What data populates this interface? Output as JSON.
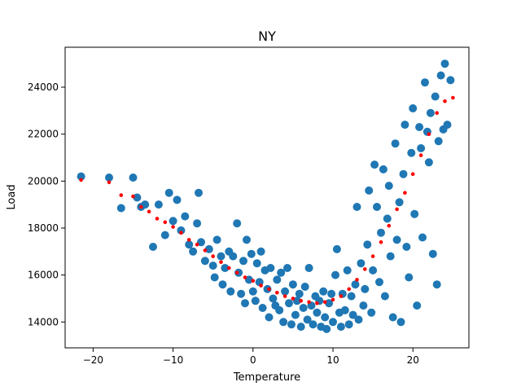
{
  "chart_data": {
    "type": "scatter",
    "title": "NY",
    "xlabel": "Temperature",
    "ylabel": "Load",
    "xlim": [
      -23.5,
      27
    ],
    "ylim": [
      12900,
      25700
    ],
    "xticks": [
      -20,
      -10,
      0,
      10,
      20
    ],
    "yticks": [
      14000,
      16000,
      18000,
      20000,
      22000,
      24000
    ],
    "grid": false,
    "colors": {
      "observed": "#1f77b4",
      "fitted": "#ff0000"
    },
    "series": [
      {
        "marker": "large-circle",
        "color": "#1f77b4",
        "points": [
          [
            -21.5,
            20200
          ],
          [
            -18,
            20150
          ],
          [
            -16.5,
            18850
          ],
          [
            -15,
            20150
          ],
          [
            -14,
            18900
          ],
          [
            -14.5,
            19300
          ],
          [
            -13.5,
            19000
          ],
          [
            -12.5,
            17200
          ],
          [
            -11.8,
            19000
          ],
          [
            -11,
            17700
          ],
          [
            -10.5,
            19500
          ],
          [
            -10,
            18300
          ],
          [
            -9.5,
            19200
          ],
          [
            -9,
            17900
          ],
          [
            -8.5,
            18500
          ],
          [
            -8,
            17300
          ],
          [
            -7.5,
            17000
          ],
          [
            -7,
            18200
          ],
          [
            -6.8,
            19500
          ],
          [
            -6.5,
            17400
          ],
          [
            -6,
            16600
          ],
          [
            -5.5,
            17100
          ],
          [
            -5,
            16400
          ],
          [
            -4.8,
            15900
          ],
          [
            -4.5,
            17500
          ],
          [
            -4,
            16800
          ],
          [
            -3.8,
            15600
          ],
          [
            -3.5,
            16300
          ],
          [
            -3,
            17000
          ],
          [
            -2.8,
            15300
          ],
          [
            -2.5,
            16800
          ],
          [
            -2,
            18200
          ],
          [
            -1.8,
            16100
          ],
          [
            -1.5,
            15200
          ],
          [
            -1.2,
            16600
          ],
          [
            -1,
            14800
          ],
          [
            -0.8,
            17500
          ],
          [
            -0.5,
            15800
          ],
          [
            -0.2,
            16900
          ],
          [
            0,
            15300
          ],
          [
            0.3,
            14900
          ],
          [
            0.5,
            16500
          ],
          [
            0.8,
            15700
          ],
          [
            1,
            17000
          ],
          [
            1.2,
            14600
          ],
          [
            1.5,
            16200
          ],
          [
            1.8,
            15400
          ],
          [
            2,
            14200
          ],
          [
            2.2,
            16300
          ],
          [
            2.5,
            15000
          ],
          [
            2.8,
            14700
          ],
          [
            3,
            15800
          ],
          [
            3.3,
            14500
          ],
          [
            3.5,
            16100
          ],
          [
            3.8,
            14000
          ],
          [
            4,
            15300
          ],
          [
            4.3,
            16300
          ],
          [
            4.5,
            14800
          ],
          [
            4.8,
            13900
          ],
          [
            5,
            15600
          ],
          [
            5.3,
            14300
          ],
          [
            5.5,
            14900
          ],
          [
            5.8,
            15200
          ],
          [
            6,
            13800
          ],
          [
            6.3,
            14600
          ],
          [
            6.5,
            15500
          ],
          [
            6.8,
            14100
          ],
          [
            7,
            16300
          ],
          [
            7.3,
            14700
          ],
          [
            7.5,
            13900
          ],
          [
            7.8,
            15100
          ],
          [
            8,
            14400
          ],
          [
            8.3,
            14900
          ],
          [
            8.5,
            13800
          ],
          [
            8.8,
            15300
          ],
          [
            9,
            14200
          ],
          [
            9.2,
            13700
          ],
          [
            9.5,
            14800
          ],
          [
            9.8,
            15200
          ],
          [
            10,
            14000
          ],
          [
            10.3,
            16000
          ],
          [
            10.5,
            17100
          ],
          [
            10.8,
            14400
          ],
          [
            11,
            13800
          ],
          [
            11.2,
            15200
          ],
          [
            11.5,
            14500
          ],
          [
            11.8,
            16200
          ],
          [
            12,
            13900
          ],
          [
            12.3,
            15100
          ],
          [
            12.5,
            14300
          ],
          [
            12.8,
            15600
          ],
          [
            13,
            18900
          ],
          [
            13.2,
            14100
          ],
          [
            13.5,
            16500
          ],
          [
            13.8,
            14700
          ],
          [
            14,
            15400
          ],
          [
            14.3,
            17300
          ],
          [
            14.5,
            19600
          ],
          [
            14.8,
            14400
          ],
          [
            15,
            16200
          ],
          [
            15.2,
            20700
          ],
          [
            15.5,
            18900
          ],
          [
            15.8,
            15700
          ],
          [
            16,
            17800
          ],
          [
            16.3,
            20500
          ],
          [
            16.5,
            15100
          ],
          [
            16.8,
            18400
          ],
          [
            17,
            19800
          ],
          [
            17.2,
            16800
          ],
          [
            17.5,
            14200
          ],
          [
            17.8,
            21600
          ],
          [
            18,
            17500
          ],
          [
            18.3,
            19100
          ],
          [
            18.5,
            14000
          ],
          [
            18.8,
            20300
          ],
          [
            19,
            22400
          ],
          [
            19.2,
            17200
          ],
          [
            19.5,
            15900
          ],
          [
            19.8,
            21200
          ],
          [
            20,
            23100
          ],
          [
            20.2,
            18600
          ],
          [
            20.5,
            14700
          ],
          [
            20.8,
            22300
          ],
          [
            21,
            21400
          ],
          [
            21.2,
            17600
          ],
          [
            21.5,
            24200
          ],
          [
            21.8,
            22100
          ],
          [
            22,
            20800
          ],
          [
            22.2,
            22900
          ],
          [
            22.5,
            16900
          ],
          [
            22.8,
            23600
          ],
          [
            23,
            15600
          ],
          [
            23.2,
            21700
          ],
          [
            23.5,
            24500
          ],
          [
            23.8,
            22200
          ],
          [
            24,
            25000
          ],
          [
            24.3,
            22400
          ],
          [
            24.7,
            24300
          ]
        ]
      },
      {
        "marker": "small-dot",
        "color": "#ff0000",
        "points": [
          [
            -21.5,
            20050
          ],
          [
            -18,
            19950
          ],
          [
            -16.5,
            19400
          ],
          [
            -15,
            19350
          ],
          [
            -14,
            18900
          ],
          [
            -13,
            18700
          ],
          [
            -12,
            18400
          ],
          [
            -11,
            18250
          ],
          [
            -10,
            18050
          ],
          [
            -9,
            17800
          ],
          [
            -8,
            17500
          ],
          [
            -7,
            17300
          ],
          [
            -6,
            17050
          ],
          [
            -5,
            16800
          ],
          [
            -4,
            16550
          ],
          [
            -3,
            16300
          ],
          [
            -2,
            16100
          ],
          [
            -1,
            15900
          ],
          [
            0,
            15750
          ],
          [
            1,
            15550
          ],
          [
            2,
            15400
          ],
          [
            3,
            15250
          ],
          [
            4,
            15100
          ],
          [
            5,
            15000
          ],
          [
            6,
            14900
          ],
          [
            7,
            14850
          ],
          [
            8,
            14800
          ],
          [
            9,
            14850
          ],
          [
            10,
            14950
          ],
          [
            11,
            15100
          ],
          [
            12,
            15400
          ],
          [
            13,
            15800
          ],
          [
            14,
            16250
          ],
          [
            15,
            16800
          ],
          [
            16,
            17400
          ],
          [
            17,
            18100
          ],
          [
            18,
            18800
          ],
          [
            19,
            19500
          ],
          [
            20,
            20300
          ],
          [
            21,
            21100
          ],
          [
            22,
            22000
          ],
          [
            23,
            22900
          ],
          [
            24,
            23400
          ],
          [
            25,
            23550
          ]
        ]
      }
    ]
  }
}
